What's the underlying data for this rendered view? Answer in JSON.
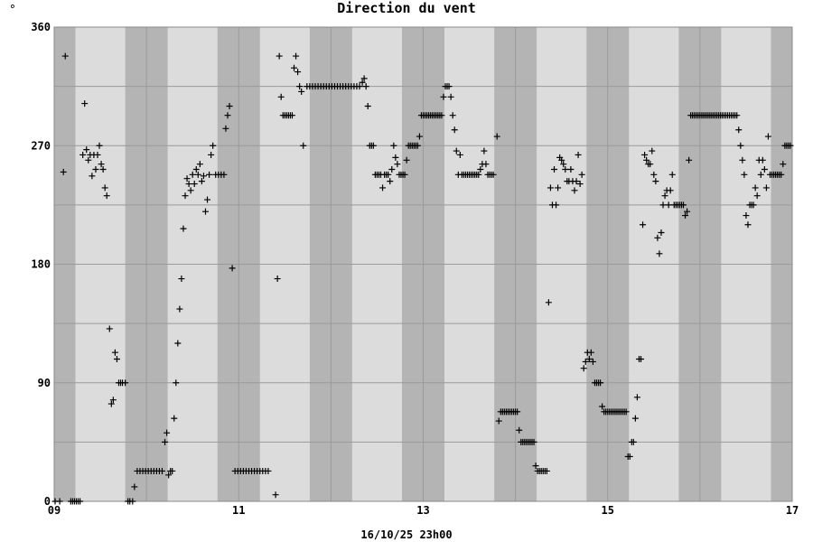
{
  "chart_data": {
    "type": "scatter",
    "title": "Direction du vent",
    "unit_label": "°",
    "footer": "16/10/25 23h00",
    "marker": "+",
    "grid": true,
    "xlim": [
      9,
      17
    ],
    "ylim": [
      0,
      360
    ],
    "x_ticks": [
      {
        "v": 9,
        "label": "09"
      },
      {
        "v": 11,
        "label": "11"
      },
      {
        "v": 13,
        "label": "13"
      },
      {
        "v": 15,
        "label": "15"
      },
      {
        "v": 17,
        "label": "17"
      }
    ],
    "y_ticks": [
      0,
      90,
      180,
      270,
      360
    ],
    "colors": {
      "plot_bg": "#dcdcdc",
      "night_band": "#b4b4b4",
      "grid": "#9a9a9a",
      "marker": "#000000"
    },
    "night_bands": [
      [
        9.0,
        9.23
      ],
      [
        9.77,
        10.23
      ],
      [
        10.77,
        11.23
      ],
      [
        11.77,
        12.23
      ],
      [
        12.77,
        13.23
      ],
      [
        13.77,
        14.23
      ],
      [
        14.77,
        15.23
      ],
      [
        15.77,
        16.23
      ],
      [
        16.77,
        17.0
      ]
    ],
    "points": [
      [
        9.01,
        0
      ],
      [
        9.06,
        0
      ],
      [
        9.1,
        250
      ],
      [
        9.12,
        338
      ],
      [
        9.18,
        0
      ],
      [
        9.2,
        0
      ],
      [
        9.22,
        0
      ],
      [
        9.24,
        0
      ],
      [
        9.26,
        0
      ],
      [
        9.28,
        0
      ],
      [
        9.31,
        263
      ],
      [
        9.33,
        302
      ],
      [
        9.35,
        267
      ],
      [
        9.37,
        259
      ],
      [
        9.39,
        263
      ],
      [
        9.41,
        247
      ],
      [
        9.43,
        263
      ],
      [
        9.45,
        252
      ],
      [
        9.47,
        263
      ],
      [
        9.49,
        270
      ],
      [
        9.51,
        256
      ],
      [
        9.53,
        252
      ],
      [
        9.55,
        238
      ],
      [
        9.57,
        232
      ],
      [
        9.6,
        131
      ],
      [
        9.62,
        74
      ],
      [
        9.64,
        77
      ],
      [
        9.66,
        113
      ],
      [
        9.68,
        108
      ],
      [
        9.7,
        90
      ],
      [
        9.72,
        90
      ],
      [
        9.74,
        90
      ],
      [
        9.77,
        90
      ],
      [
        9.8,
        0
      ],
      [
        9.82,
        0
      ],
      [
        9.85,
        0
      ],
      [
        9.87,
        11
      ],
      [
        9.9,
        23
      ],
      [
        9.93,
        23
      ],
      [
        9.96,
        23
      ],
      [
        9.99,
        23
      ],
      [
        10.02,
        23
      ],
      [
        10.05,
        23
      ],
      [
        10.08,
        23
      ],
      [
        10.11,
        23
      ],
      [
        10.14,
        23
      ],
      [
        10.17,
        23
      ],
      [
        10.2,
        45
      ],
      [
        10.22,
        52
      ],
      [
        10.24,
        20
      ],
      [
        10.26,
        23
      ],
      [
        10.28,
        23
      ],
      [
        10.3,
        63
      ],
      [
        10.32,
        90
      ],
      [
        10.34,
        120
      ],
      [
        10.36,
        146
      ],
      [
        10.38,
        169
      ],
      [
        10.4,
        207
      ],
      [
        10.42,
        232
      ],
      [
        10.44,
        245
      ],
      [
        10.46,
        241
      ],
      [
        10.48,
        236
      ],
      [
        10.5,
        248
      ],
      [
        10.52,
        241
      ],
      [
        10.54,
        252
      ],
      [
        10.56,
        248
      ],
      [
        10.58,
        256
      ],
      [
        10.6,
        243
      ],
      [
        10.62,
        247
      ],
      [
        10.64,
        220
      ],
      [
        10.66,
        229
      ],
      [
        10.68,
        248
      ],
      [
        10.7,
        263
      ],
      [
        10.72,
        270
      ],
      [
        10.75,
        248
      ],
      [
        10.78,
        248
      ],
      [
        10.81,
        248
      ],
      [
        10.84,
        248
      ],
      [
        10.86,
        283
      ],
      [
        10.88,
        293
      ],
      [
        10.9,
        300
      ],
      [
        10.93,
        177
      ],
      [
        10.96,
        23
      ],
      [
        10.99,
        23
      ],
      [
        11.02,
        23
      ],
      [
        11.05,
        23
      ],
      [
        11.08,
        23
      ],
      [
        11.11,
        23
      ],
      [
        11.14,
        23
      ],
      [
        11.17,
        23
      ],
      [
        11.2,
        23
      ],
      [
        11.23,
        23
      ],
      [
        11.26,
        23
      ],
      [
        11.29,
        23
      ],
      [
        11.32,
        23
      ],
      [
        11.4,
        5
      ],
      [
        11.42,
        169
      ],
      [
        11.44,
        338
      ],
      [
        11.46,
        307
      ],
      [
        11.48,
        293
      ],
      [
        11.5,
        293
      ],
      [
        11.52,
        293
      ],
      [
        11.54,
        293
      ],
      [
        11.56,
        293
      ],
      [
        11.58,
        293
      ],
      [
        11.6,
        329
      ],
      [
        11.62,
        338
      ],
      [
        11.64,
        326
      ],
      [
        11.66,
        315
      ],
      [
        11.68,
        311
      ],
      [
        11.7,
        270
      ],
      [
        11.74,
        315
      ],
      [
        11.77,
        315
      ],
      [
        11.8,
        315
      ],
      [
        11.83,
        315
      ],
      [
        11.86,
        315
      ],
      [
        11.89,
        315
      ],
      [
        11.92,
        315
      ],
      [
        11.95,
        315
      ],
      [
        11.98,
        315
      ],
      [
        12.01,
        315
      ],
      [
        12.04,
        315
      ],
      [
        12.07,
        315
      ],
      [
        12.1,
        315
      ],
      [
        12.13,
        315
      ],
      [
        12.16,
        315
      ],
      [
        12.19,
        315
      ],
      [
        12.22,
        315
      ],
      [
        12.25,
        315
      ],
      [
        12.28,
        315
      ],
      [
        12.31,
        315
      ],
      [
        12.34,
        318
      ],
      [
        12.36,
        321
      ],
      [
        12.38,
        315
      ],
      [
        12.4,
        300
      ],
      [
        12.42,
        270
      ],
      [
        12.44,
        270
      ],
      [
        12.46,
        270
      ],
      [
        12.48,
        248
      ],
      [
        12.5,
        248
      ],
      [
        12.52,
        248
      ],
      [
        12.54,
        248
      ],
      [
        12.56,
        238
      ],
      [
        12.58,
        248
      ],
      [
        12.6,
        248
      ],
      [
        12.62,
        248
      ],
      [
        12.64,
        243
      ],
      [
        12.66,
        252
      ],
      [
        12.68,
        270
      ],
      [
        12.7,
        261
      ],
      [
        12.72,
        256
      ],
      [
        12.74,
        248
      ],
      [
        12.76,
        248
      ],
      [
        12.78,
        248
      ],
      [
        12.8,
        248
      ],
      [
        12.82,
        259
      ],
      [
        12.84,
        270
      ],
      [
        12.86,
        270
      ],
      [
        12.88,
        270
      ],
      [
        12.9,
        270
      ],
      [
        12.92,
        270
      ],
      [
        12.94,
        270
      ],
      [
        12.96,
        277
      ],
      [
        12.98,
        293
      ],
      [
        13.0,
        293
      ],
      [
        13.02,
        293
      ],
      [
        13.04,
        293
      ],
      [
        13.06,
        293
      ],
      [
        13.08,
        293
      ],
      [
        13.1,
        293
      ],
      [
        13.12,
        293
      ],
      [
        13.14,
        293
      ],
      [
        13.16,
        293
      ],
      [
        13.18,
        293
      ],
      [
        13.2,
        293
      ],
      [
        13.22,
        307
      ],
      [
        13.24,
        315
      ],
      [
        13.26,
        315
      ],
      [
        13.28,
        315
      ],
      [
        13.3,
        307
      ],
      [
        13.32,
        293
      ],
      [
        13.34,
        282
      ],
      [
        13.36,
        266
      ],
      [
        13.38,
        248
      ],
      [
        13.4,
        263
      ],
      [
        13.42,
        248
      ],
      [
        13.44,
        248
      ],
      [
        13.46,
        248
      ],
      [
        13.48,
        248
      ],
      [
        13.5,
        248
      ],
      [
        13.52,
        248
      ],
      [
        13.54,
        248
      ],
      [
        13.56,
        248
      ],
      [
        13.58,
        248
      ],
      [
        13.6,
        248
      ],
      [
        13.62,
        252
      ],
      [
        13.64,
        256
      ],
      [
        13.66,
        266
      ],
      [
        13.68,
        256
      ],
      [
        13.7,
        248
      ],
      [
        13.72,
        248
      ],
      [
        13.74,
        248
      ],
      [
        13.76,
        248
      ],
      [
        13.8,
        277
      ],
      [
        13.82,
        61
      ],
      [
        13.84,
        68
      ],
      [
        13.86,
        68
      ],
      [
        13.88,
        68
      ],
      [
        13.9,
        68
      ],
      [
        13.92,
        68
      ],
      [
        13.94,
        68
      ],
      [
        13.96,
        68
      ],
      [
        13.98,
        68
      ],
      [
        14.0,
        68
      ],
      [
        14.02,
        68
      ],
      [
        14.04,
        54
      ],
      [
        14.06,
        45
      ],
      [
        14.08,
        45
      ],
      [
        14.1,
        45
      ],
      [
        14.12,
        45
      ],
      [
        14.14,
        45
      ],
      [
        14.16,
        45
      ],
      [
        14.18,
        45
      ],
      [
        14.2,
        45
      ],
      [
        14.22,
        27
      ],
      [
        14.24,
        23
      ],
      [
        14.26,
        23
      ],
      [
        14.28,
        23
      ],
      [
        14.3,
        23
      ],
      [
        14.32,
        23
      ],
      [
        14.34,
        23
      ],
      [
        14.36,
        151
      ],
      [
        14.38,
        238
      ],
      [
        14.4,
        225
      ],
      [
        14.42,
        252
      ],
      [
        14.44,
        225
      ],
      [
        14.46,
        238
      ],
      [
        14.48,
        261
      ],
      [
        14.5,
        259
      ],
      [
        14.52,
        256
      ],
      [
        14.54,
        252
      ],
      [
        14.56,
        243
      ],
      [
        14.58,
        243
      ],
      [
        14.6,
        252
      ],
      [
        14.62,
        243
      ],
      [
        14.64,
        236
      ],
      [
        14.66,
        243
      ],
      [
        14.68,
        263
      ],
      [
        14.7,
        241
      ],
      [
        14.72,
        248
      ],
      [
        14.74,
        101
      ],
      [
        14.76,
        106
      ],
      [
        14.78,
        113
      ],
      [
        14.8,
        108
      ],
      [
        14.82,
        113
      ],
      [
        14.84,
        106
      ],
      [
        14.86,
        90
      ],
      [
        14.88,
        90
      ],
      [
        14.9,
        90
      ],
      [
        14.92,
        90
      ],
      [
        14.94,
        72
      ],
      [
        14.96,
        68
      ],
      [
        14.98,
        68
      ],
      [
        15.0,
        68
      ],
      [
        15.02,
        68
      ],
      [
        15.04,
        68
      ],
      [
        15.06,
        68
      ],
      [
        15.08,
        68
      ],
      [
        15.1,
        68
      ],
      [
        15.12,
        68
      ],
      [
        15.14,
        68
      ],
      [
        15.16,
        68
      ],
      [
        15.18,
        68
      ],
      [
        15.2,
        68
      ],
      [
        15.22,
        34
      ],
      [
        15.24,
        34
      ],
      [
        15.26,
        45
      ],
      [
        15.28,
        45
      ],
      [
        15.3,
        63
      ],
      [
        15.32,
        79
      ],
      [
        15.34,
        108
      ],
      [
        15.36,
        108
      ],
      [
        15.38,
        210
      ],
      [
        15.4,
        263
      ],
      [
        15.42,
        259
      ],
      [
        15.44,
        256
      ],
      [
        15.46,
        256
      ],
      [
        15.48,
        266
      ],
      [
        15.5,
        248
      ],
      [
        15.52,
        243
      ],
      [
        15.54,
        200
      ],
      [
        15.56,
        188
      ],
      [
        15.58,
        204
      ],
      [
        15.6,
        225
      ],
      [
        15.62,
        232
      ],
      [
        15.64,
        236
      ],
      [
        15.66,
        225
      ],
      [
        15.68,
        236
      ],
      [
        15.7,
        248
      ],
      [
        15.72,
        225
      ],
      [
        15.74,
        225
      ],
      [
        15.76,
        225
      ],
      [
        15.78,
        225
      ],
      [
        15.8,
        225
      ],
      [
        15.82,
        225
      ],
      [
        15.84,
        217
      ],
      [
        15.86,
        220
      ],
      [
        15.88,
        259
      ],
      [
        15.9,
        293
      ],
      [
        15.92,
        293
      ],
      [
        15.94,
        293
      ],
      [
        15.96,
        293
      ],
      [
        15.98,
        293
      ],
      [
        16.0,
        293
      ],
      [
        16.02,
        293
      ],
      [
        16.04,
        293
      ],
      [
        16.06,
        293
      ],
      [
        16.08,
        293
      ],
      [
        16.1,
        293
      ],
      [
        16.12,
        293
      ],
      [
        16.14,
        293
      ],
      [
        16.16,
        293
      ],
      [
        16.18,
        293
      ],
      [
        16.2,
        293
      ],
      [
        16.22,
        293
      ],
      [
        16.24,
        293
      ],
      [
        16.26,
        293
      ],
      [
        16.28,
        293
      ],
      [
        16.3,
        293
      ],
      [
        16.32,
        293
      ],
      [
        16.34,
        293
      ],
      [
        16.36,
        293
      ],
      [
        16.38,
        293
      ],
      [
        16.4,
        293
      ],
      [
        16.42,
        282
      ],
      [
        16.44,
        270
      ],
      [
        16.46,
        259
      ],
      [
        16.48,
        248
      ],
      [
        16.5,
        217
      ],
      [
        16.52,
        210
      ],
      [
        16.54,
        225
      ],
      [
        16.56,
        225
      ],
      [
        16.58,
        225
      ],
      [
        16.6,
        238
      ],
      [
        16.62,
        232
      ],
      [
        16.64,
        259
      ],
      [
        16.66,
        248
      ],
      [
        16.68,
        259
      ],
      [
        16.7,
        252
      ],
      [
        16.72,
        238
      ],
      [
        16.74,
        277
      ],
      [
        16.76,
        248
      ],
      [
        16.78,
        248
      ],
      [
        16.8,
        248
      ],
      [
        16.82,
        248
      ],
      [
        16.84,
        248
      ],
      [
        16.86,
        248
      ],
      [
        16.88,
        248
      ],
      [
        16.9,
        256
      ],
      [
        16.92,
        270
      ],
      [
        16.94,
        270
      ],
      [
        16.96,
        270
      ],
      [
        16.98,
        270
      ]
    ]
  }
}
